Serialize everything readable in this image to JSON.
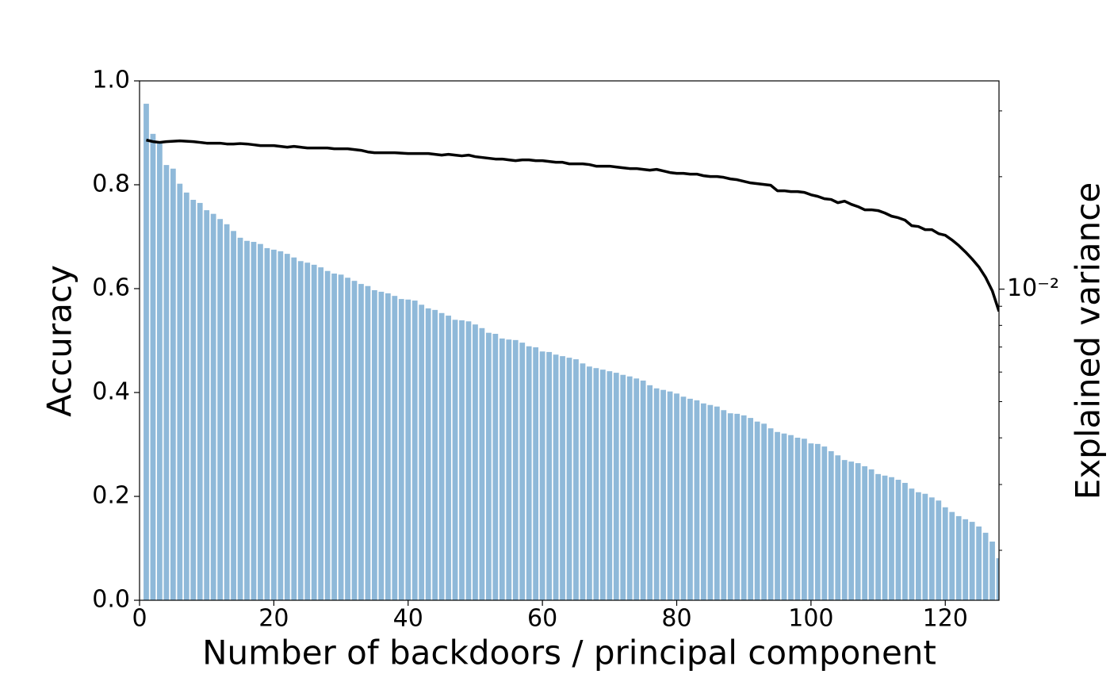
{
  "chart_data": {
    "type": "bar",
    "xlabel": "Number of backdoors / principal component",
    "ylabel": "Accuracy",
    "y2label": "Explained variance",
    "x": [
      1,
      2,
      3,
      4,
      5,
      6,
      7,
      8,
      9,
      10,
      11,
      12,
      13,
      14,
      15,
      16,
      17,
      18,
      19,
      20,
      21,
      22,
      23,
      24,
      25,
      26,
      27,
      28,
      29,
      30,
      31,
      32,
      33,
      34,
      35,
      36,
      37,
      38,
      39,
      40,
      41,
      42,
      43,
      44,
      45,
      46,
      47,
      48,
      49,
      50,
      51,
      52,
      53,
      54,
      55,
      56,
      57,
      58,
      59,
      60,
      61,
      62,
      63,
      64,
      65,
      66,
      67,
      68,
      69,
      70,
      71,
      72,
      73,
      74,
      75,
      76,
      77,
      78,
      79,
      80,
      81,
      82,
      83,
      84,
      85,
      86,
      87,
      88,
      89,
      90,
      91,
      92,
      93,
      94,
      95,
      96,
      97,
      98,
      99,
      100,
      101,
      102,
      103,
      104,
      105,
      106,
      107,
      108,
      109,
      110,
      111,
      112,
      113,
      114,
      115,
      116,
      117,
      118,
      119,
      120,
      121,
      122,
      123,
      124,
      125,
      126,
      127,
      128
    ],
    "series": [
      {
        "type": "bar",
        "color": "#8fb9d9",
        "values": [
          0.956,
          0.898,
          0.881,
          0.838,
          0.831,
          0.802,
          0.785,
          0.771,
          0.765,
          0.751,
          0.744,
          0.734,
          0.724,
          0.711,
          0.698,
          0.692,
          0.69,
          0.686,
          0.678,
          0.675,
          0.672,
          0.667,
          0.66,
          0.653,
          0.65,
          0.646,
          0.641,
          0.634,
          0.629,
          0.627,
          0.621,
          0.615,
          0.609,
          0.605,
          0.597,
          0.594,
          0.591,
          0.586,
          0.58,
          0.579,
          0.577,
          0.569,
          0.562,
          0.559,
          0.553,
          0.548,
          0.54,
          0.539,
          0.537,
          0.531,
          0.524,
          0.515,
          0.513,
          0.504,
          0.502,
          0.501,
          0.496,
          0.489,
          0.487,
          0.479,
          0.478,
          0.473,
          0.47,
          0.467,
          0.464,
          0.456,
          0.45,
          0.447,
          0.444,
          0.441,
          0.438,
          0.434,
          0.431,
          0.427,
          0.423,
          0.414,
          0.408,
          0.405,
          0.402,
          0.398,
          0.392,
          0.388,
          0.385,
          0.379,
          0.376,
          0.373,
          0.366,
          0.36,
          0.359,
          0.356,
          0.351,
          0.344,
          0.34,
          0.331,
          0.324,
          0.321,
          0.318,
          0.313,
          0.311,
          0.302,
          0.301,
          0.296,
          0.287,
          0.279,
          0.27,
          0.267,
          0.264,
          0.258,
          0.252,
          0.243,
          0.24,
          0.237,
          0.232,
          0.226,
          0.215,
          0.208,
          0.205,
          0.198,
          0.192,
          0.179,
          0.17,
          0.162,
          0.156,
          0.151,
          0.142,
          0.13,
          0.113,
          0.081
        ]
      },
      {
        "type": "line",
        "axis": "y2",
        "color": "#000000",
        "values": [
          0.02507,
          0.02483,
          0.02471,
          0.02483,
          0.02489,
          0.02495,
          0.02489,
          0.02483,
          0.02471,
          0.02459,
          0.02459,
          0.02459,
          0.02447,
          0.02447,
          0.02453,
          0.02447,
          0.02435,
          0.02423,
          0.02423,
          0.02423,
          0.02411,
          0.02399,
          0.02411,
          0.02399,
          0.02387,
          0.02387,
          0.02387,
          0.02387,
          0.02376,
          0.02376,
          0.02376,
          0.02364,
          0.02353,
          0.0233,
          0.02318,
          0.02318,
          0.02318,
          0.02318,
          0.02313,
          0.02307,
          0.02307,
          0.02307,
          0.02307,
          0.02296,
          0.02285,
          0.02296,
          0.02285,
          0.02274,
          0.02285,
          0.02263,
          0.02252,
          0.02241,
          0.0223,
          0.0223,
          0.02219,
          0.02208,
          0.02219,
          0.02219,
          0.02208,
          0.02208,
          0.02197,
          0.02186,
          0.02186,
          0.02165,
          0.02165,
          0.02165,
          0.02155,
          0.02134,
          0.02134,
          0.02134,
          0.02123,
          0.02113,
          0.02103,
          0.02103,
          0.02092,
          0.02082,
          0.02092,
          0.02072,
          0.02052,
          0.02042,
          0.02042,
          0.02032,
          0.02032,
          0.02012,
          0.02002,
          0.02002,
          0.01992,
          0.01973,
          0.01963,
          0.01944,
          0.01925,
          0.01916,
          0.01907,
          0.01897,
          0.01834,
          0.01834,
          0.01825,
          0.01825,
          0.01816,
          0.01789,
          0.01772,
          0.01746,
          0.01738,
          0.01704,
          0.0172,
          0.01687,
          0.01663,
          0.01631,
          0.01631,
          0.01623,
          0.01599,
          0.01568,
          0.01553,
          0.0153,
          0.01479,
          0.01471,
          0.01443,
          0.01443,
          0.01408,
          0.01394,
          0.01354,
          0.01309,
          0.01258,
          0.01204,
          0.01147,
          0.01076,
          0.0099,
          0.00872
        ]
      }
    ],
    "xlim": [
      0,
      128
    ],
    "xticks": [
      0,
      20,
      40,
      60,
      80,
      100,
      120
    ],
    "ylim": [
      0,
      1
    ],
    "yticks": [
      {
        "value": 0,
        "label": "0.0"
      },
      0.2,
      0.4,
      0.6,
      0.8,
      {
        "value": 1,
        "label": "1.0"
      }
    ],
    "y2lim": [
      0.00147,
      0.0361
    ],
    "y2log": true,
    "y2ticks": [
      {
        "value": 0.01,
        "label": "10⁻²"
      }
    ],
    "y2minorticks": [
      0.002,
      0.003,
      0.004,
      0.005,
      0.006,
      0.007,
      0.008,
      0.009,
      0.02,
      0.03
    ],
    "bar_width": 0.8,
    "grid": false
  }
}
